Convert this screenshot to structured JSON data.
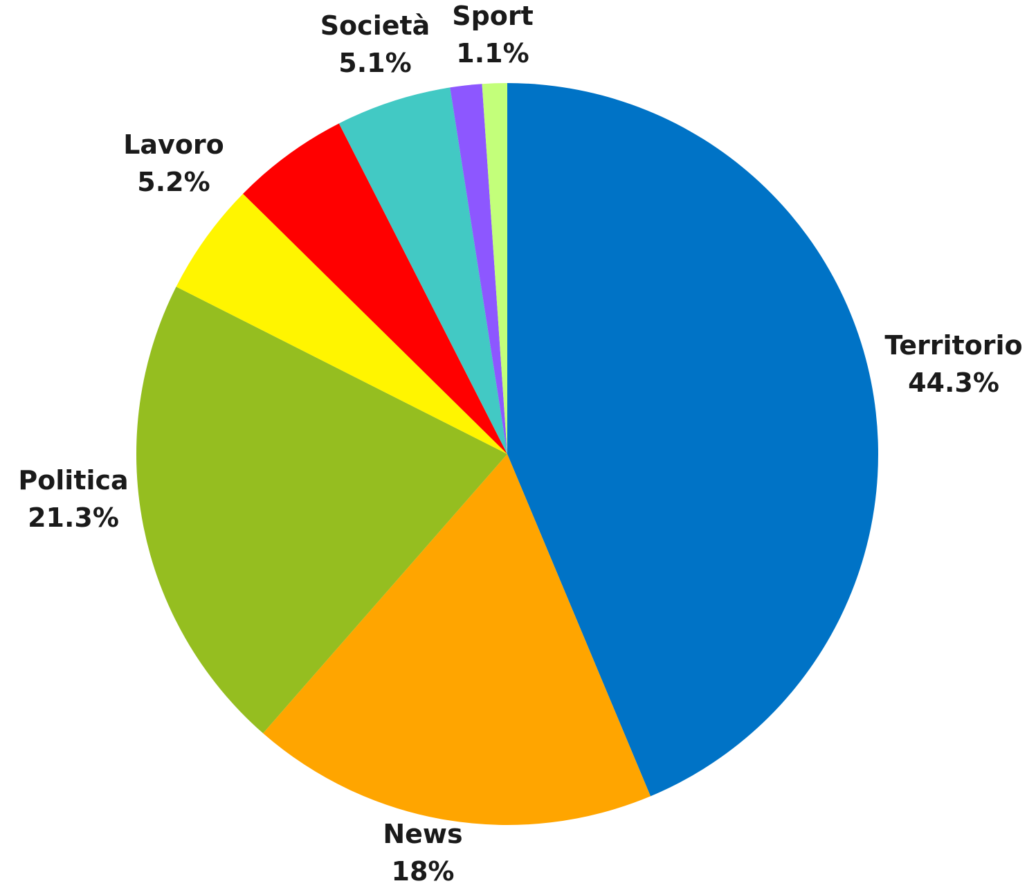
{
  "chart_data": {
    "type": "pie",
    "start": "12 o'clock",
    "direction": "clockwise",
    "slices": [
      {
        "label": "Territorio",
        "value": 44.3,
        "value_label": "44.3%",
        "color": "#0073C6"
      },
      {
        "label": "News",
        "value": 18,
        "value_label": "18%",
        "color": "#FFA500"
      },
      {
        "label": "Politica",
        "value": 21.3,
        "value_label": "21.3%",
        "color": "#95BE20"
      },
      {
        "label": "",
        "value": 5.0,
        "value_label": "",
        "color": "#FFF500"
      },
      {
        "label": "Lavoro",
        "value": 5.2,
        "value_label": "5.2%",
        "color": "#FF0000"
      },
      {
        "label": "Società",
        "value": 5.1,
        "value_label": "5.1%",
        "color": "#42C9C4"
      },
      {
        "label": "",
        "value": 1.4,
        "value_label": "",
        "color": "#8D57FF"
      },
      {
        "label": "Sport",
        "value": 1.1,
        "value_label": "1.1%",
        "color": "#C3FF7A"
      }
    ]
  }
}
